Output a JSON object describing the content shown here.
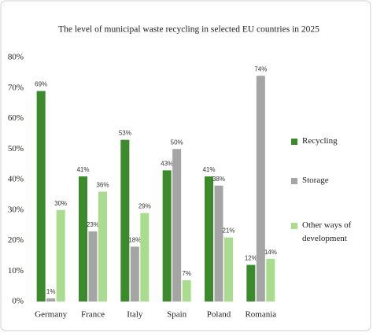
{
  "chart_data": {
    "type": "bar",
    "title": "The level of municipal waste recycling in selected EU countries in 2025",
    "categories": [
      "Germany",
      "France",
      "Italy",
      "Spain",
      "Poland",
      "Romania"
    ],
    "series": [
      {
        "name": "Recycling",
        "color": "#3b8a2b",
        "values": [
          69,
          41,
          53,
          43,
          41,
          12
        ],
        "value_labels": [
          "69%",
          "41%",
          "53%",
          "43%",
          "41%",
          "12%"
        ]
      },
      {
        "name": "Storage",
        "color": "#a5a5a5",
        "values": [
          1,
          23,
          18,
          50,
          38,
          74
        ],
        "value_labels": [
          "1%",
          "23%",
          "18%",
          "50%",
          "38%",
          "74%"
        ]
      },
      {
        "name": "Other ways of development",
        "color": "#a9dc8e",
        "values": [
          30,
          36,
          29,
          7,
          21,
          14
        ],
        "value_labels": [
          "30%",
          "36%",
          "29%",
          "7%",
          "21%",
          "14%"
        ]
      }
    ],
    "ylim": [
      0,
      80
    ],
    "yticks": [
      {
        "value": 0,
        "label": "0%"
      },
      {
        "value": 10,
        "label": "10%"
      },
      {
        "value": 20,
        "label": "20%"
      },
      {
        "value": 30,
        "label": "30%"
      },
      {
        "value": 40,
        "label": "40%"
      },
      {
        "value": 50,
        "label": "50%"
      },
      {
        "value": 60,
        "label": "60%"
      },
      {
        "value": 70,
        "label": "70%"
      },
      {
        "value": 80,
        "label": "80%"
      }
    ],
    "grid": false,
    "legend": "right"
  }
}
